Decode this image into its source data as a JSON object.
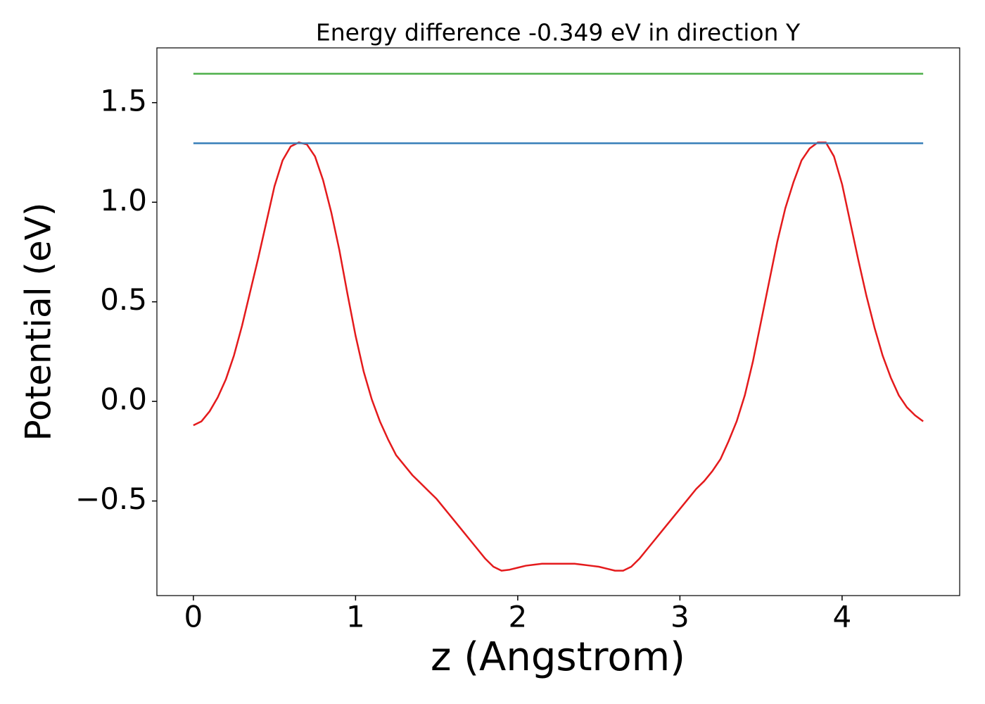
{
  "chart_data": {
    "type": "line",
    "title": "Energy difference -0.349 eV in direction Y",
    "x_label": "z (Angstrom)",
    "y_label": "Potential (eV)",
    "xlim": [
      -0.225,
      4.725
    ],
    "ylim": [
      -0.975,
      1.775
    ],
    "xticks": [
      0,
      1,
      2,
      3,
      4
    ],
    "yticks": [
      {
        "value": -0.5,
        "label": "−0.5"
      },
      {
        "value": 0,
        "label": "0.0"
      },
      {
        "value": 0.5,
        "label": "0.5"
      },
      {
        "value": 1,
        "label": "1.0"
      },
      {
        "value": 1.5,
        "label": "1.5"
      }
    ],
    "series": [
      {
        "color": "#e41a1c",
        "x": [
          0,
          0.05,
          0.1,
          0.15,
          0.2,
          0.25,
          0.3,
          0.35,
          0.4,
          0.45,
          0.5,
          0.55,
          0.6,
          0.65,
          0.7,
          0.75,
          0.8,
          0.85,
          0.9,
          0.95,
          1.0,
          1.05,
          1.1,
          1.15,
          1.2,
          1.25,
          1.3,
          1.35,
          1.4,
          1.45,
          1.5,
          1.55,
          1.6,
          1.65,
          1.7,
          1.75,
          1.8,
          1.85,
          1.9,
          1.95,
          2.0,
          2.05,
          2.1,
          2.15,
          2.2,
          2.25,
          2.3,
          2.35,
          2.4,
          2.45,
          2.5,
          2.55,
          2.6,
          2.65,
          2.7,
          2.75,
          2.8,
          2.85,
          2.9,
          2.95,
          3.0,
          3.05,
          3.1,
          3.15,
          3.2,
          3.25,
          3.3,
          3.35,
          3.4,
          3.45,
          3.5,
          3.55,
          3.6,
          3.65,
          3.7,
          3.75,
          3.8,
          3.85,
          3.9,
          3.95,
          4.0,
          4.05,
          4.1,
          4.15,
          4.2,
          4.25,
          4.3,
          4.35,
          4.4,
          4.45,
          4.5
        ],
        "values": [
          -0.12,
          -0.1,
          -0.05,
          0.02,
          0.11,
          0.23,
          0.38,
          0.55,
          0.72,
          0.9,
          1.08,
          1.21,
          1.28,
          1.3,
          1.29,
          1.23,
          1.11,
          0.95,
          0.76,
          0.54,
          0.33,
          0.15,
          0.01,
          -0.1,
          -0.19,
          -0.27,
          -0.32,
          -0.37,
          -0.41,
          -0.45,
          -0.49,
          -0.54,
          -0.59,
          -0.64,
          -0.69,
          -0.74,
          -0.79,
          -0.83,
          -0.85,
          -0.845,
          -0.835,
          -0.825,
          -0.82,
          -0.815,
          -0.815,
          -0.815,
          -0.815,
          -0.815,
          -0.82,
          -0.825,
          -0.83,
          -0.84,
          -0.85,
          -0.85,
          -0.83,
          -0.79,
          -0.74,
          -0.69,
          -0.64,
          -0.59,
          -0.54,
          -0.49,
          -0.44,
          -0.4,
          -0.35,
          -0.29,
          -0.2,
          -0.1,
          0.03,
          0.2,
          0.4,
          0.6,
          0.8,
          0.97,
          1.1,
          1.21,
          1.27,
          1.3,
          1.3,
          1.23,
          1.09,
          0.9,
          0.71,
          0.53,
          0.37,
          0.23,
          0.12,
          0.03,
          -0.03,
          -0.07,
          -0.1
        ]
      },
      {
        "color": "#377eb8",
        "x": [
          0,
          4.5
        ],
        "values": [
          1.296,
          1.296
        ]
      },
      {
        "color": "#4daf4a",
        "x": [
          0,
          4.5
        ],
        "values": [
          1.645,
          1.645
        ]
      }
    ]
  }
}
